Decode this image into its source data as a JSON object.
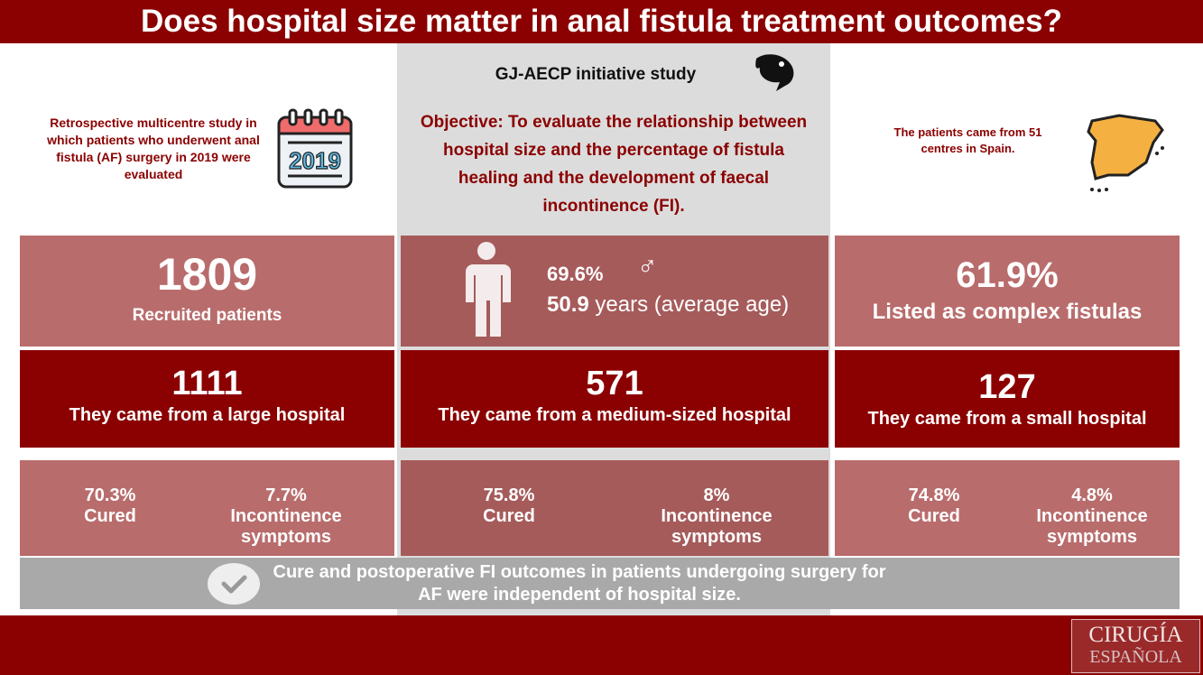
{
  "title": "Does hospital size matter in anal fistula treatment outcomes?",
  "intro": {
    "left_text": "Retrospective multicentre study in which patients who underwent anal fistula (AF) surgery in 2019 were evaluated",
    "calendar_year": "2019",
    "study_name": "GJ-AECP initiative study",
    "objective": "Objective: To evaluate the relationship between hospital size and the percentage of fistula healing and the development of faecal incontinence (FI).",
    "right_text": "The patients came from 51 centres in Spain."
  },
  "summary": {
    "patients": "1809",
    "patients_label": "Recruited patients",
    "male_pct": "69.6%",
    "age": "50.9",
    "age_label": "years (average age)",
    "complex_pct": "61.9%",
    "complex_label": "Listed as complex fistulas"
  },
  "hospitals": [
    {
      "count": "1111",
      "label": "They came from a large hospital",
      "cured": "70.3%",
      "cured_label": "Cured",
      "fi": "7.7%",
      "fi_label": "Incontinence symptoms"
    },
    {
      "count": "571",
      "label": "They came from a medium-sized hospital",
      "cured": "75.8%",
      "cured_label": "Cured",
      "fi": "8%",
      "fi_label": "Incontinence symptoms"
    },
    {
      "count": "127",
      "label": "They came from a small hospital",
      "cured": "74.8%",
      "cured_label": "Cured",
      "fi": "4.8%",
      "fi_label": "Incontinence symptoms"
    }
  ],
  "conclusion": "Cure and postoperative FI outcomes in patients undergoing surgery for AF were independent of hospital size.",
  "logo": {
    "line1": "CIRUGÍA",
    "line2": "ESPAÑOLA"
  },
  "colors": {
    "dark_red": "#8b0000",
    "pink": "#b96c6c",
    "gray": "#dcdcdc",
    "banner": "#a9a9a9"
  }
}
